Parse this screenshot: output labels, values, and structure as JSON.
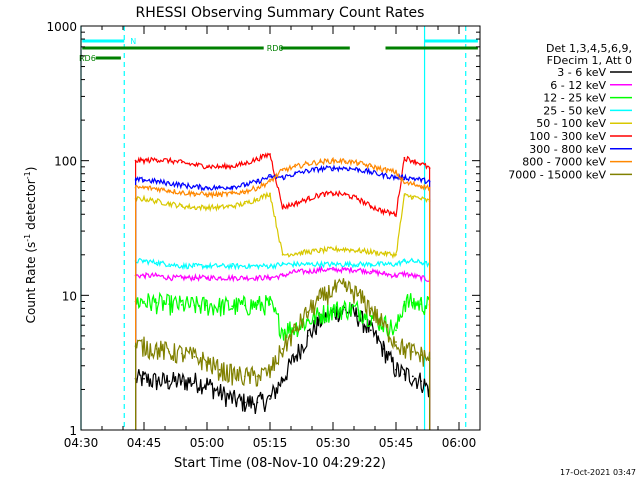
{
  "chart_data": {
    "type": "line",
    "title": "RHESSI Observing Summary Count Rates",
    "xlabel": "Start Time (08-Nov-10 04:29:22)",
    "ylabel_parts": [
      "Count Rate (s",
      "-1",
      " detector",
      "-1",
      ")"
    ],
    "y_scale": "log",
    "ylim": [
      1,
      1000
    ],
    "xlim_minutes_after_0430": [
      0,
      95
    ],
    "x_ticks": [
      {
        "t": 0,
        "label": "04:30"
      },
      {
        "t": 15,
        "label": "04:45"
      },
      {
        "t": 30,
        "label": "05:00"
      },
      {
        "t": 45,
        "label": "05:15"
      },
      {
        "t": 60,
        "label": "05:30"
      },
      {
        "t": 75,
        "label": "05:45"
      },
      {
        "t": 90,
        "label": "06:00"
      }
    ],
    "y_ticks": [
      {
        "v": 1,
        "label": "1"
      },
      {
        "v": 10,
        "label": "10"
      },
      {
        "v": 100,
        "label": "100"
      },
      {
        "v": 1000,
        "label": "1000"
      }
    ],
    "legend_header": [
      "Det 1,3,4,5,6,9,",
      "FDecim 1, Att 0"
    ],
    "legend_placement": "right",
    "series": [
      {
        "name": "3 - 6 keV",
        "color": "#000000",
        "x": [
          13,
          15,
          18,
          21,
          24,
          27,
          30,
          33,
          36,
          39,
          42,
          45,
          48,
          51,
          54,
          57,
          60,
          63,
          66,
          69,
          72,
          75,
          77,
          79,
          81,
          83
        ],
        "y": [
          2.4,
          2.4,
          2.3,
          2.3,
          2.3,
          2.3,
          2.2,
          1.9,
          1.7,
          1.6,
          1.6,
          1.7,
          2.4,
          3.5,
          5.0,
          6.5,
          7.5,
          7.8,
          7.0,
          5.5,
          4.0,
          2.8,
          2.6,
          2.5,
          2.3,
          2.0
        ]
      },
      {
        "name": "6 - 12 keV",
        "color": "#ff00ff",
        "x": [
          13,
          15,
          18,
          21,
          24,
          27,
          30,
          33,
          36,
          39,
          42,
          45,
          48,
          51,
          54,
          57,
          60,
          63,
          66,
          69,
          72,
          75,
          77,
          79,
          81,
          83
        ],
        "y": [
          14,
          14,
          14,
          13.5,
          13.5,
          13.5,
          13.5,
          13.5,
          13.5,
          13.5,
          13.5,
          13.5,
          14,
          15,
          15,
          15.5,
          15.5,
          15.5,
          15.5,
          15,
          14.5,
          14,
          14.5,
          14,
          13.5,
          13
        ]
      },
      {
        "name": "12 - 25 keV",
        "color": "#00ff00",
        "x": [
          13,
          15,
          18,
          21,
          24,
          27,
          30,
          33,
          36,
          39,
          42,
          45,
          48,
          51,
          54,
          57,
          60,
          63,
          66,
          69,
          72,
          75,
          77,
          79,
          81,
          83
        ],
        "y": [
          9.0,
          9.0,
          8.8,
          8.6,
          8.5,
          8.4,
          8.4,
          8.3,
          8.3,
          8.4,
          8.5,
          8.6,
          5.5,
          5.8,
          6.5,
          7.2,
          7.8,
          8.0,
          7.8,
          7.0,
          6.2,
          5.5,
          9.0,
          8.8,
          8.6,
          8.5
        ]
      },
      {
        "name": "25 - 50 keV",
        "color": "#00ffff",
        "x": [
          13,
          15,
          18,
          21,
          24,
          27,
          30,
          33,
          36,
          39,
          42,
          45,
          48,
          51,
          54,
          57,
          60,
          63,
          66,
          69,
          72,
          75,
          77,
          79,
          81,
          83
        ],
        "y": [
          18,
          18,
          17.5,
          17,
          16.5,
          16.5,
          16.5,
          16.5,
          16.5,
          16.5,
          16.5,
          16.5,
          17,
          17,
          17,
          17,
          17,
          17,
          17,
          17,
          17,
          17,
          18,
          18,
          17.5,
          17
        ]
      },
      {
        "name": "50 - 100 keV",
        "color": "#d8c800",
        "x": [
          13,
          15,
          18,
          21,
          24,
          27,
          30,
          33,
          36,
          39,
          42,
          45,
          48,
          51,
          54,
          57,
          60,
          63,
          66,
          69,
          72,
          75,
          77,
          79,
          81,
          83
        ],
        "y": [
          52,
          52,
          50,
          48,
          46,
          45,
          45,
          45,
          46,
          48,
          52,
          57,
          20,
          20.5,
          21,
          21.5,
          22,
          22,
          21.5,
          21,
          20.5,
          20,
          55,
          54,
          52,
          50
        ]
      },
      {
        "name": "100 - 300 keV",
        "color": "#ff0000",
        "x": [
          13,
          15,
          18,
          21,
          24,
          27,
          30,
          33,
          36,
          39,
          42,
          45,
          48,
          51,
          54,
          57,
          60,
          63,
          66,
          69,
          72,
          75,
          77,
          79,
          81,
          83
        ],
        "y": [
          100,
          100,
          102,
          100,
          97,
          93,
          91,
          90,
          91,
          95,
          103,
          112,
          45,
          48,
          52,
          56,
          57,
          56,
          52,
          46,
          42,
          40,
          105,
          100,
          95,
          88
        ]
      },
      {
        "name": "300 - 800 keV",
        "color": "#0000ff",
        "x": [
          13,
          15,
          18,
          21,
          24,
          27,
          30,
          33,
          36,
          39,
          42,
          45,
          48,
          51,
          54,
          57,
          60,
          63,
          66,
          69,
          72,
          75,
          77,
          79,
          81,
          83
        ],
        "y": [
          72,
          72,
          70,
          68,
          66,
          64,
          63,
          63,
          64,
          66,
          70,
          76,
          75,
          80,
          84,
          87,
          88,
          88,
          86,
          82,
          78,
          75,
          75,
          74,
          72,
          70
        ]
      },
      {
        "name": "800 - 7000 keV",
        "color": "#ff8800",
        "x": [
          13,
          15,
          18,
          21,
          24,
          27,
          30,
          33,
          36,
          39,
          42,
          45,
          48,
          51,
          54,
          57,
          60,
          63,
          66,
          69,
          72,
          75,
          77,
          79,
          81,
          83
        ],
        "y": [
          63,
          63,
          62,
          60,
          58,
          57,
          56,
          56,
          57,
          59,
          63,
          70,
          85,
          90,
          95,
          98,
          100,
          99,
          96,
          91,
          86,
          82,
          68,
          67,
          65,
          63
        ]
      },
      {
        "name": "7000 - 15000 keV",
        "color": "#808000",
        "x": [
          13,
          15,
          18,
          21,
          24,
          27,
          30,
          33,
          36,
          39,
          42,
          45,
          48,
          51,
          54,
          57,
          60,
          63,
          66,
          69,
          72,
          75,
          77,
          79,
          81,
          83
        ],
        "y": [
          4.2,
          4.2,
          4.0,
          3.8,
          3.7,
          3.5,
          3.2,
          2.8,
          2.6,
          2.5,
          2.5,
          2.7,
          4.0,
          5.5,
          7.5,
          9.5,
          11,
          11.5,
          10,
          8,
          6,
          4.5,
          4.0,
          3.8,
          3.6,
          3.4
        ]
      }
    ],
    "vertical_markers": [
      {
        "t": 0.0,
        "style": "solid",
        "color": "#00ffff"
      },
      {
        "t": 10.3,
        "style": "dashed",
        "color": "#00ffff"
      },
      {
        "t": 81.8,
        "style": "solid",
        "color": "#00ffff"
      },
      {
        "t": 91.6,
        "style": "dashed",
        "color": "#00ffff"
      }
    ],
    "flag_bars": [
      {
        "label": "N",
        "color": "#00ffff",
        "level": 1,
        "segments": [
          [
            0.3,
            10.3
          ],
          [
            81.8,
            94.5
          ]
        ]
      },
      {
        "label": "RD0",
        "color": "#008000",
        "level": 2,
        "segments": [
          [
            0.3,
            43.5
          ],
          [
            47.5,
            64
          ],
          [
            72.5,
            94.5
          ]
        ]
      },
      {
        "label": "RD6",
        "color": "#008000",
        "level": 3,
        "segments": [
          [
            3.5,
            9.5
          ]
        ]
      }
    ],
    "footer_date": "17-Oct-2021 03:47"
  }
}
